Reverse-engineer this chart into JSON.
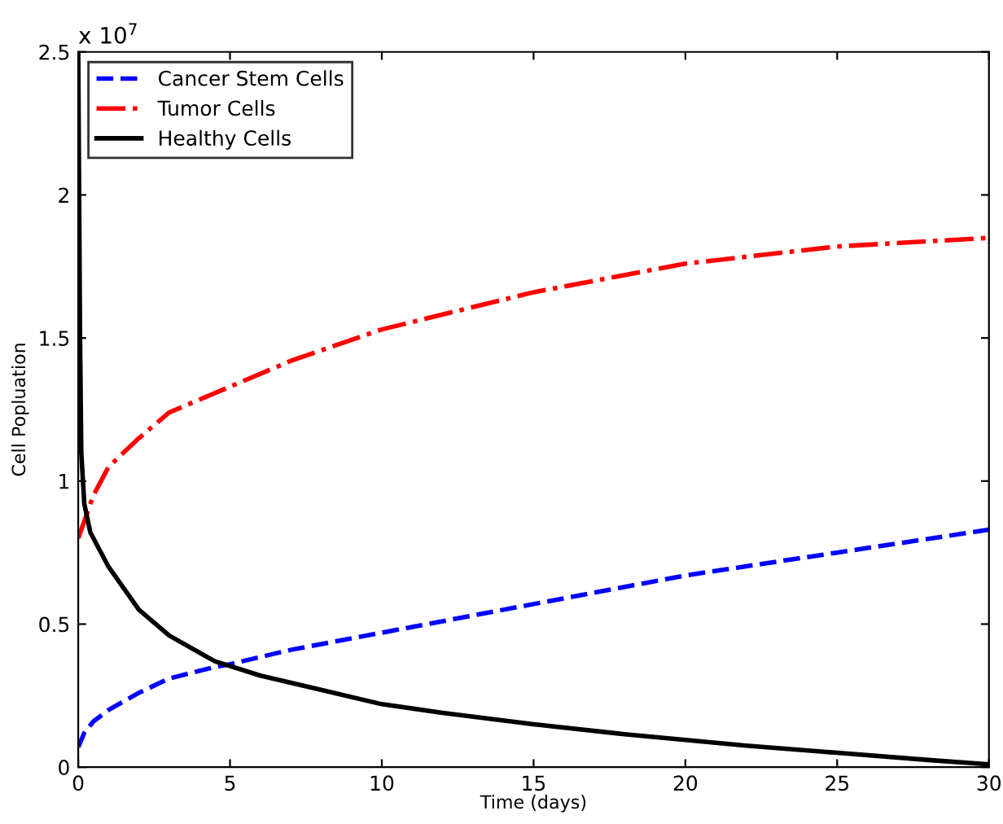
{
  "chart_data": {
    "type": "line",
    "xlabel": "Time (days)",
    "ylabel": "Cell Popluation",
    "xlim": [
      0,
      30
    ],
    "xticks": [
      0,
      5,
      10,
      15,
      20,
      25,
      30
    ],
    "ylim": [
      0,
      2.5
    ],
    "yticks": [
      0,
      0.5,
      1,
      1.5,
      2,
      2.5
    ],
    "annotations": [
      "x 10$^{7}$"
    ],
    "legend": "top left",
    "grid": false,
    "series": [
      {
        "name": "Cancer Stem Cells",
        "color": "#0000ff",
        "line_style": "dashed",
        "x": [
          0,
          0.2,
          0.5,
          1,
          2,
          3,
          4.5,
          5,
          7,
          10,
          15,
          20,
          25,
          30
        ],
        "values": [
          0.07,
          0.12,
          0.16,
          0.2,
          0.26,
          0.31,
          0.35,
          0.36,
          0.41,
          0.47,
          0.57,
          0.67,
          0.75,
          0.83
        ]
      },
      {
        "name": "Tumor Cells",
        "color": "#ff0000",
        "line_style": "dashdot",
        "x": [
          0,
          0.5,
          1,
          2,
          3,
          5,
          7,
          10,
          15,
          20,
          25,
          30
        ],
        "values": [
          0.8,
          0.95,
          1.05,
          1.15,
          1.24,
          1.33,
          1.42,
          1.53,
          1.66,
          1.76,
          1.82,
          1.85
        ]
      },
      {
        "name": "Healthy Cells",
        "color": "#000000",
        "line_style": "solid",
        "x": [
          0,
          0.03,
          0.06,
          0.1,
          0.2,
          0.4,
          1,
          2,
          3,
          4.5,
          6,
          8,
          10,
          12,
          15,
          18,
          20,
          22,
          25,
          28,
          30
        ],
        "values": [
          2.5,
          2.0,
          1.5,
          1.1,
          0.92,
          0.82,
          0.7,
          0.55,
          0.46,
          0.37,
          0.32,
          0.27,
          0.22,
          0.19,
          0.15,
          0.115,
          0.095,
          0.075,
          0.05,
          0.025,
          0.01
        ]
      }
    ]
  }
}
